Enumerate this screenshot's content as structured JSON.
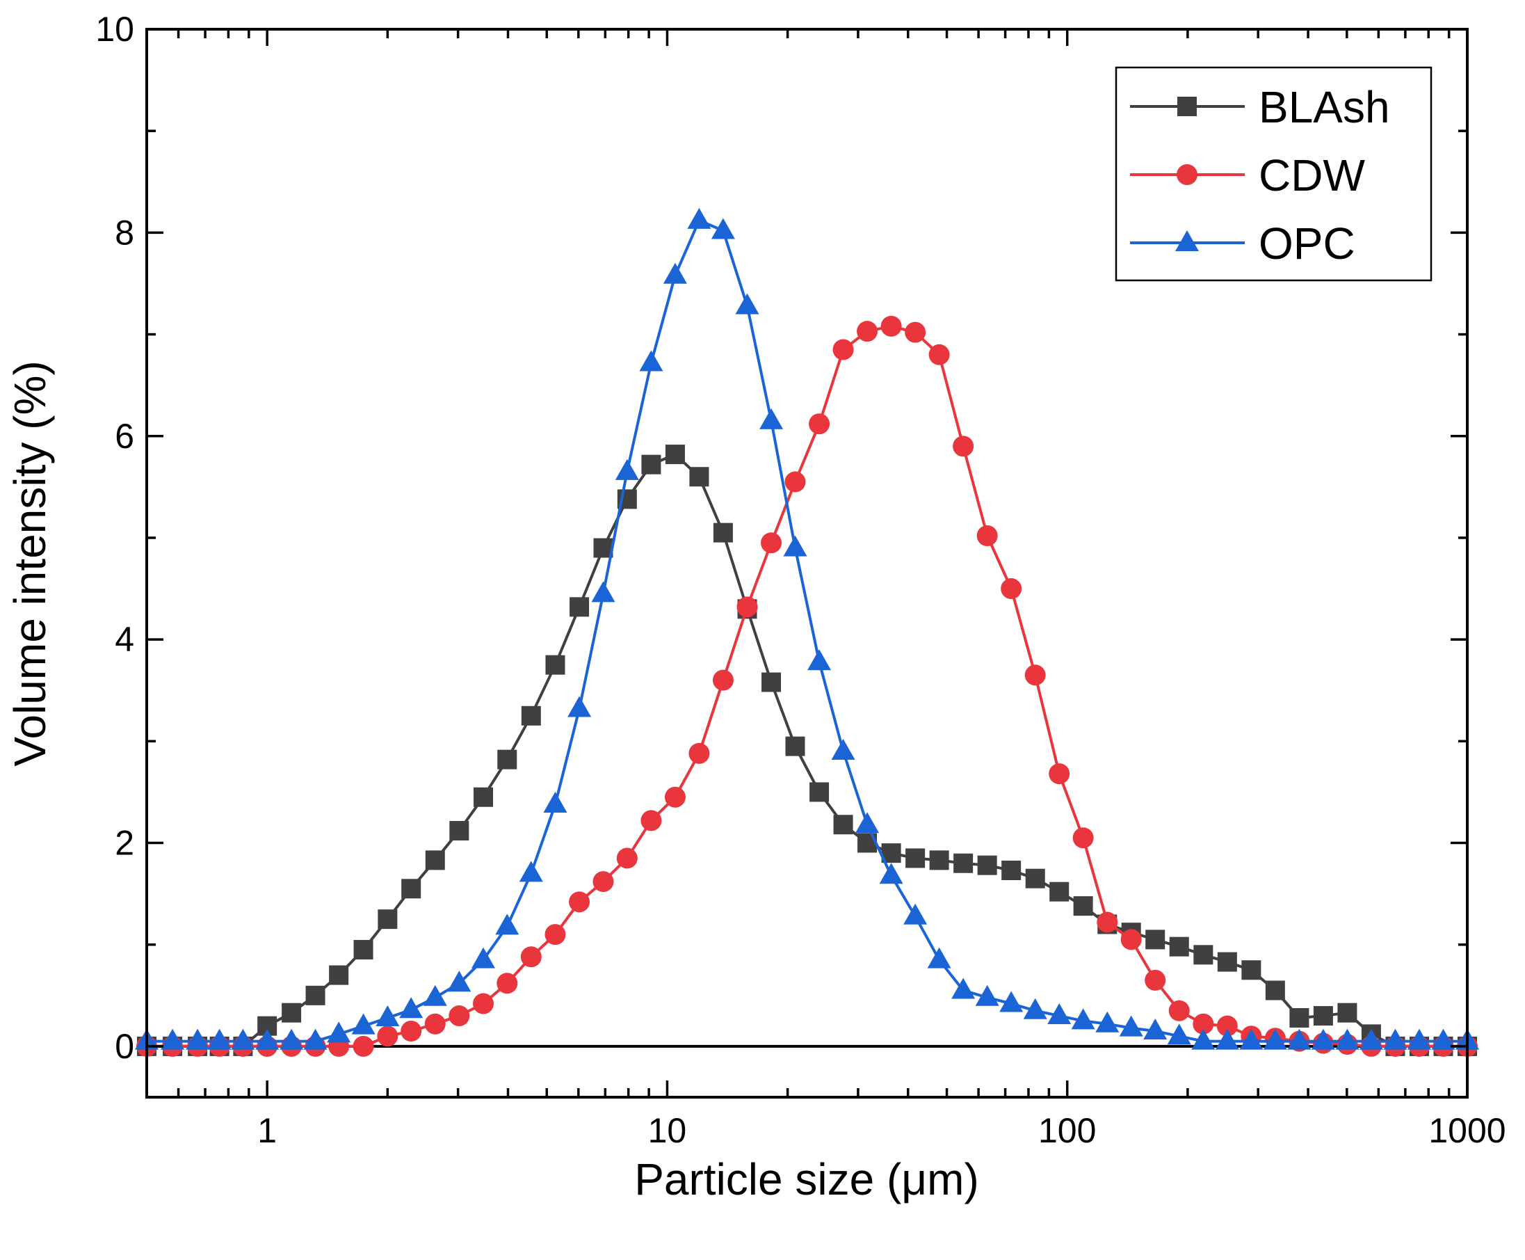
{
  "chart_data": {
    "type": "line",
    "title": "",
    "xlabel": "Particle size (μm)",
    "ylabel": "Volume intensity (%)",
    "xscale": "log",
    "xlim": [
      0.5,
      1000
    ],
    "ylim": [
      -0.5,
      10
    ],
    "xticks": [
      1,
      10,
      100,
      1000
    ],
    "xtick_labels": [
      "1",
      "10",
      "100",
      "1000"
    ],
    "yticks": [
      0,
      2,
      4,
      6,
      8,
      10
    ],
    "ytick_labels": [
      "0",
      "2",
      "4",
      "6",
      "8",
      "10"
    ],
    "grid": false,
    "legend": "top-right",
    "series": [
      {
        "name": "BLAsh",
        "color": "#404040",
        "marker": "square",
        "x": [
          0.5,
          0.58,
          0.67,
          0.76,
          0.87,
          1.0,
          1.15,
          1.32,
          1.51,
          1.74,
          2.0,
          2.29,
          2.63,
          3.02,
          3.47,
          3.98,
          4.57,
          5.25,
          6.03,
          6.92,
          7.94,
          9.12,
          10.47,
          12.02,
          13.8,
          15.85,
          18.2,
          20.89,
          23.99,
          27.54,
          31.62,
          36.31,
          41.69,
          47.86,
          54.95,
          63.1,
          72.44,
          83.18,
          95.5,
          109.6,
          125.9,
          144.5,
          165.9,
          190.5,
          218.8,
          251.2,
          288.4,
          331.1,
          380.2,
          436.5,
          501.2,
          575.4,
          660.7,
          758.6,
          871,
          1000
        ],
        "y": [
          0,
          0,
          0,
          0,
          0,
          0.2,
          0.33,
          0.5,
          0.7,
          0.95,
          1.25,
          1.55,
          1.83,
          2.12,
          2.45,
          2.82,
          3.25,
          3.75,
          4.32,
          4.9,
          5.38,
          5.72,
          5.82,
          5.6,
          5.05,
          4.3,
          3.58,
          2.95,
          2.5,
          2.18,
          2.0,
          1.9,
          1.85,
          1.83,
          1.8,
          1.78,
          1.73,
          1.65,
          1.52,
          1.38,
          1.2,
          1.12,
          1.05,
          0.98,
          0.9,
          0.83,
          0.75,
          0.55,
          0.28,
          0.3,
          0.33,
          0.12,
          0,
          0,
          0,
          0
        ]
      },
      {
        "name": "CDW",
        "color": "#e8363c",
        "marker": "circle",
        "x": [
          0.5,
          0.58,
          0.67,
          0.76,
          0.87,
          1.0,
          1.15,
          1.32,
          1.51,
          1.74,
          2.0,
          2.29,
          2.63,
          3.02,
          3.47,
          3.98,
          4.57,
          5.25,
          6.03,
          6.92,
          7.94,
          9.12,
          10.47,
          12.02,
          13.8,
          15.85,
          18.2,
          20.89,
          23.99,
          27.54,
          31.62,
          36.31,
          41.69,
          47.86,
          54.95,
          63.1,
          72.44,
          83.18,
          95.5,
          109.6,
          125.9,
          144.5,
          165.9,
          190.5,
          218.8,
          251.2,
          288.4,
          331.1,
          380.2,
          436.5,
          501.2,
          575.4,
          660.7,
          758.6,
          871,
          1000
        ],
        "y": [
          0,
          0,
          0,
          0,
          0,
          0,
          0,
          0,
          0,
          0,
          0.1,
          0.15,
          0.22,
          0.3,
          0.42,
          0.62,
          0.88,
          1.1,
          1.42,
          1.62,
          1.85,
          2.22,
          2.45,
          2.88,
          3.6,
          4.32,
          4.95,
          5.55,
          6.12,
          6.85,
          7.03,
          7.08,
          7.02,
          6.8,
          5.9,
          5.02,
          4.5,
          3.65,
          2.68,
          2.05,
          1.22,
          1.05,
          0.65,
          0.35,
          0.22,
          0.2,
          0.1,
          0.08,
          0.05,
          0.03,
          0.02,
          0,
          0,
          0,
          0,
          0
        ]
      },
      {
        "name": "OPC",
        "color": "#1a64d6",
        "marker": "triangle",
        "x": [
          0.5,
          0.58,
          0.67,
          0.76,
          0.87,
          1.0,
          1.15,
          1.32,
          1.51,
          1.74,
          2.0,
          2.29,
          2.63,
          3.02,
          3.47,
          3.98,
          4.57,
          5.25,
          6.03,
          6.92,
          7.94,
          9.12,
          10.47,
          12.02,
          13.8,
          15.85,
          18.2,
          20.89,
          23.99,
          27.54,
          31.62,
          36.31,
          41.69,
          47.86,
          54.95,
          63.1,
          72.44,
          83.18,
          95.5,
          109.6,
          125.9,
          144.5,
          165.9,
          190.5,
          218.8,
          251.2,
          288.4,
          331.1,
          380.2,
          436.5,
          501.2,
          575.4,
          660.7,
          758.6,
          871,
          1000
        ],
        "y": [
          0.05,
          0.05,
          0.05,
          0.05,
          0.05,
          0.05,
          0.05,
          0.05,
          0.12,
          0.2,
          0.28,
          0.36,
          0.48,
          0.62,
          0.85,
          1.18,
          1.7,
          2.38,
          3.32,
          4.45,
          5.65,
          6.72,
          7.58,
          8.12,
          8.02,
          7.28,
          6.15,
          4.9,
          3.78,
          2.9,
          2.18,
          1.68,
          1.28,
          0.85,
          0.55,
          0.48,
          0.42,
          0.35,
          0.3,
          0.25,
          0.22,
          0.18,
          0.15,
          0.1,
          0.05,
          0.05,
          0.05,
          0.05,
          0.05,
          0.05,
          0.05,
          0.05,
          0.05,
          0.05,
          0.05,
          0.05
        ]
      }
    ]
  }
}
